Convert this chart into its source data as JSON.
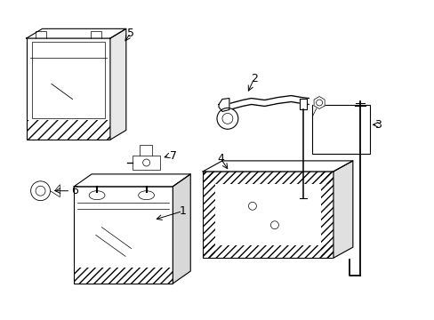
{
  "bg_color": "#ffffff",
  "line_color": "#000000",
  "label_color": "#000000",
  "parts": [
    "1",
    "2",
    "3",
    "4",
    "5",
    "6",
    "7"
  ]
}
